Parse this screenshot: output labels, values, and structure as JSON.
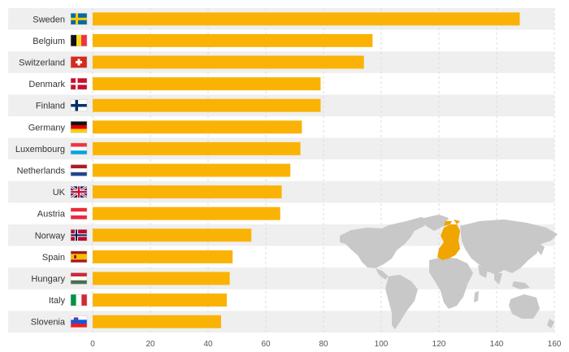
{
  "chart_data": {
    "type": "bar",
    "orientation": "horizontal",
    "title": "",
    "xlabel": "",
    "ylabel": "",
    "xlim": [
      0,
      160
    ],
    "xticks": [
      0,
      20,
      40,
      60,
      80,
      100,
      120,
      140,
      160
    ],
    "grid": true,
    "legend": "none",
    "categories": [
      "Sweden",
      "Belgium",
      "Switzerland",
      "Denmark",
      "Finland",
      "Germany",
      "Luxembourg",
      "Netherlands",
      "UK",
      "Austria",
      "Norway",
      "Spain",
      "Hungary",
      "Italy",
      "Slovenia"
    ],
    "values": [
      148,
      97,
      94,
      79,
      79,
      72.5,
      72,
      68.5,
      65.5,
      65,
      55,
      48.5,
      47.5,
      46.5,
      44.5
    ],
    "flag_icons": [
      "flag-sweden-icon",
      "flag-belgium-icon",
      "flag-switzerland-icon",
      "flag-denmark-icon",
      "flag-finland-icon",
      "flag-germany-icon",
      "flag-luxembourg-icon",
      "flag-netherlands-icon",
      "flag-uk-icon",
      "flag-austria-icon",
      "flag-norway-icon",
      "flag-spain-icon",
      "flag-hungary-icon",
      "flag-italy-icon",
      "flag-slovenia-icon"
    ],
    "inset": "world-map-icon"
  },
  "colors": {
    "bar": "#fab305",
    "row_band": "#efefef",
    "map_land": "#c8c8c8",
    "map_highlight": "#f0a500"
  }
}
